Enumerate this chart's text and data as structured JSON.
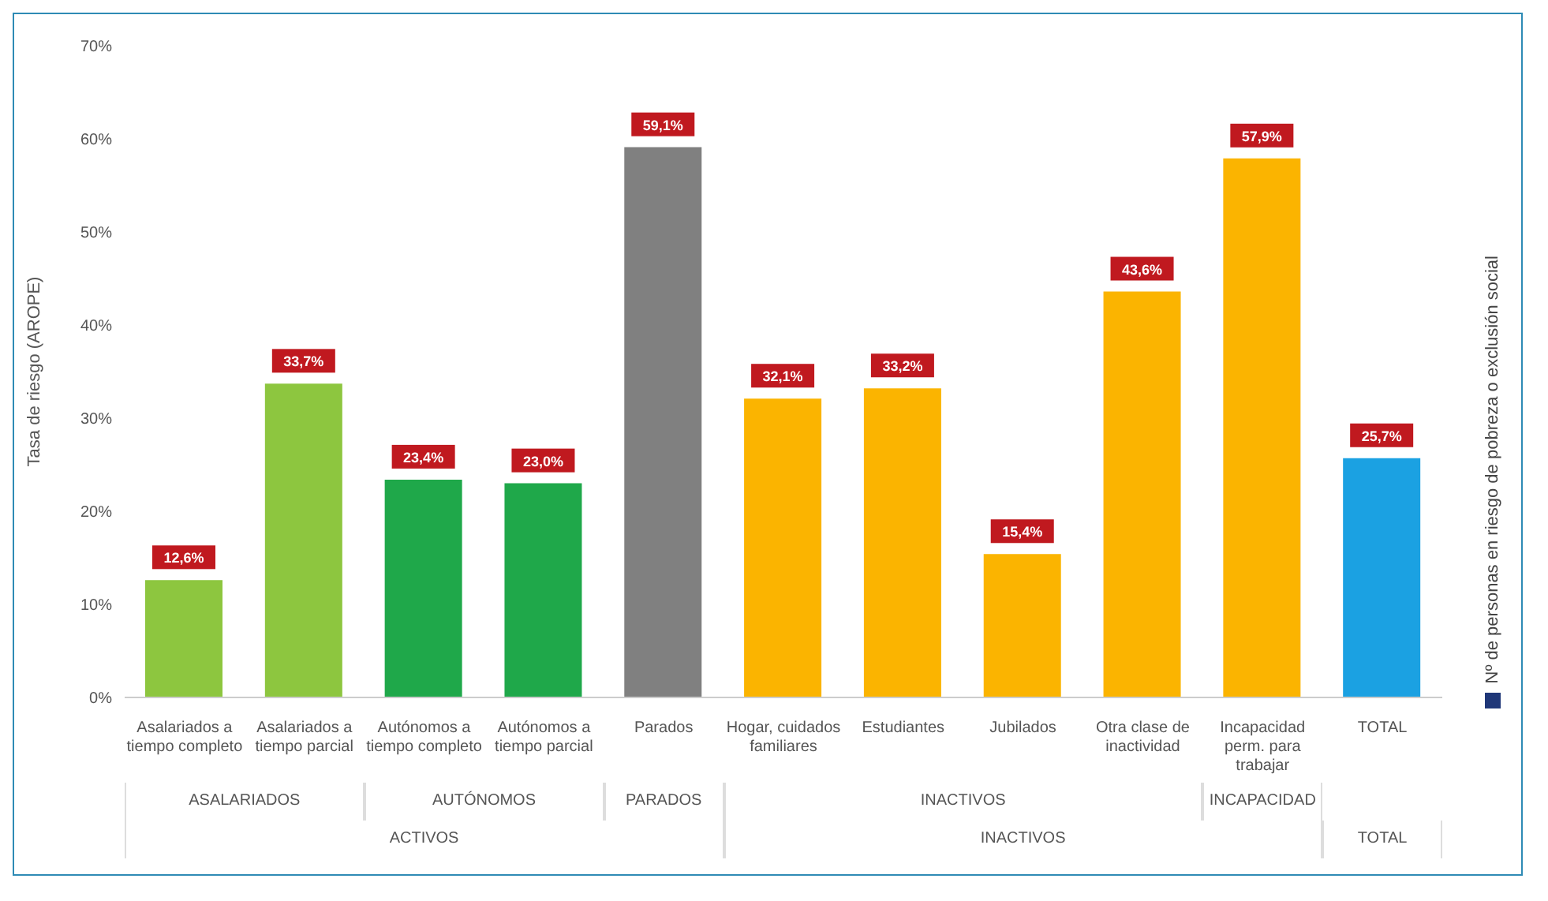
{
  "chart_data": {
    "type": "bar",
    "ylabel": "Tasa de riesgo (AROPE)",
    "categories": [
      "Asalariados a tiempo completo",
      "Asalariados a tiempo parcial",
      "Autónomos a tiempo completo",
      "Autónomos a tiempo parcial",
      "Parados",
      "Hogar, cuidados familiares",
      "Estudiantes",
      "Jubilados",
      "Otra clase de inactividad",
      "Incapacidad perm. para trabajar",
      "TOTAL"
    ],
    "series": [
      {
        "name": "Nº de personas en riesgo de pobreza o exclusión social",
        "color": "#1f3778",
        "colors": [
          "#8dc63f",
          "#8dc63f",
          "#1fa84a",
          "#1fa84a",
          "#808080",
          "#fbb400",
          "#fbb400",
          "#fbb400",
          "#fbb400",
          "#fbb400",
          "#1ba1e2"
        ],
        "values": [
          12.6,
          33.7,
          23.4,
          23.0,
          59.1,
          32.1,
          33.2,
          15.4,
          43.6,
          57.9,
          25.7
        ],
        "value_labels": [
          "12,6%",
          "33,7%",
          "23,4%",
          "23,0%",
          "59,1%",
          "32,1%",
          "33,2%",
          "15,4%",
          "43,6%",
          "57,9%",
          "25,7%"
        ]
      }
    ],
    "ylim": [
      0,
      70
    ],
    "yticks": [
      {
        "value": 0,
        "label": "0%"
      },
      {
        "value": 10,
        "label": "10%"
      },
      {
        "value": 20,
        "label": "20%"
      },
      {
        "value": 30,
        "label": "30%"
      },
      {
        "value": 40,
        "label": "40%"
      },
      {
        "value": 50,
        "label": "50%"
      },
      {
        "value": 60,
        "label": "60%"
      },
      {
        "value": 70,
        "label": "70%"
      }
    ],
    "annotations": [
      "ASALARIADOS",
      "AUTÓNOMOS",
      "PARADOS",
      "INACTIVOS",
      "INCAPACIDAD",
      "ACTIVOS",
      "INACTIVOS",
      "TOTAL"
    ],
    "grid": false,
    "legend": "right"
  }
}
